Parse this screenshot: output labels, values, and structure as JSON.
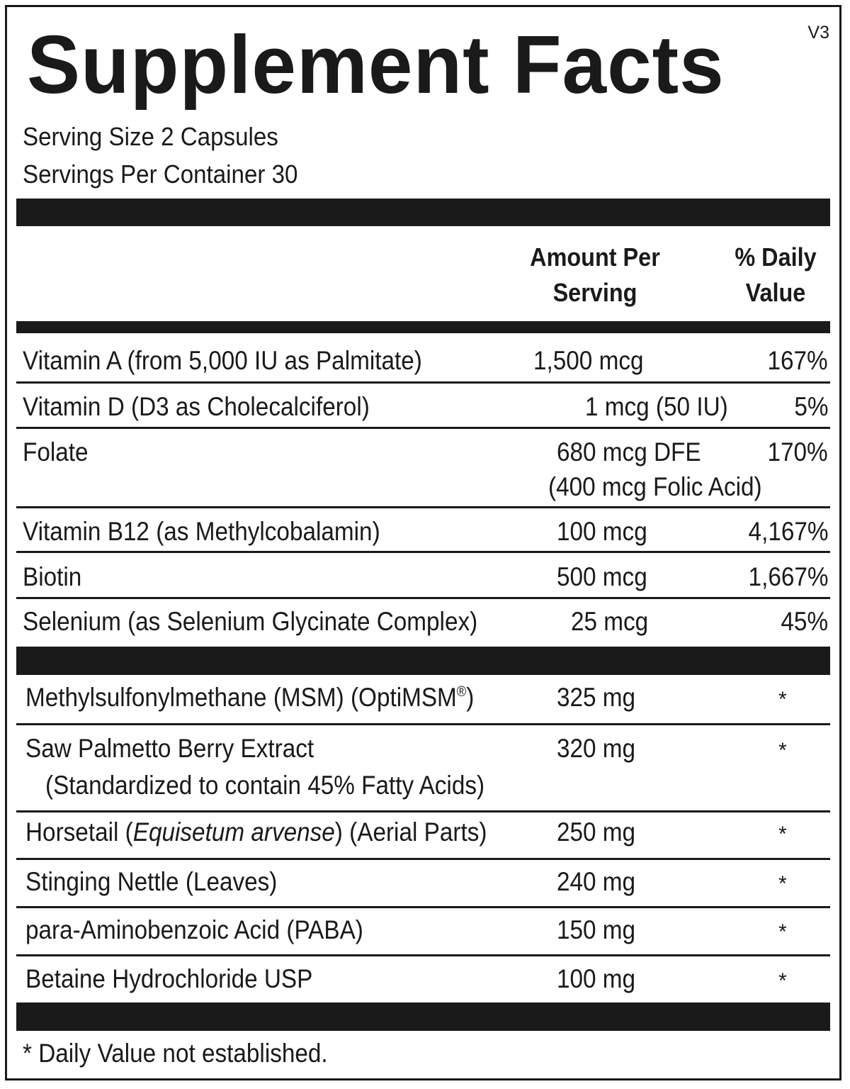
{
  "title": "Supplement Facts",
  "version": "V3",
  "serving_size": "Serving Size 2 Capsules",
  "servings_per_container": "Servings Per Container 30",
  "header": {
    "amount_line1": "Amount Per",
    "amount_line2": "Serving",
    "dv_line1": "% Daily",
    "dv_line2": "Value"
  },
  "vitamins": [
    {
      "name": "Vitamin A (from 5,000 IU as Palmitate)",
      "amount": "1,500 mcg",
      "dv": "167%"
    },
    {
      "name": "Vitamin D (D3 as Cholecalciferol)",
      "amount": "1 mcg (50 IU)",
      "dv": "5%"
    },
    {
      "name": "Folate",
      "amount": "680 mcg DFE",
      "amount2": "(400 mcg Folic Acid)",
      "dv": "170%"
    },
    {
      "name": "Vitamin B12 (as Methylcobalamin)",
      "amount": "100 mcg",
      "dv": "4,167%"
    },
    {
      "name": "Biotin",
      "amount": "500 mcg",
      "dv": "1,667%"
    },
    {
      "name": "Selenium (as Selenium Glycinate Complex)",
      "amount": "25 mcg",
      "dv": "45%"
    }
  ],
  "others": [
    {
      "name": "Methylsulfonylmethane (MSM) (OptiMSM",
      "reg": "®",
      "name_end": ")",
      "amount": "325 mg",
      "dv": "*"
    },
    {
      "name": "Saw Palmetto Berry Extract",
      "name2": "(Standardized to contain 45% Fatty Acids)",
      "amount": "320 mg",
      "dv": "*"
    },
    {
      "name_pre": "Horsetail (",
      "name_italic": "Equisetum arvense",
      "name_post": ") (Aerial Parts)",
      "amount": "250 mg",
      "dv": "*"
    },
    {
      "name": "Stinging Nettle (Leaves)",
      "amount": "240 mg",
      "dv": "*"
    },
    {
      "name": "para-Aminobenzoic Acid (PABA)",
      "amount": "150 mg",
      "dv": "*"
    },
    {
      "name": "Betaine Hydrochloride USP",
      "amount": "100 mg",
      "dv": "*"
    }
  ],
  "footnote": "* Daily Value not established."
}
